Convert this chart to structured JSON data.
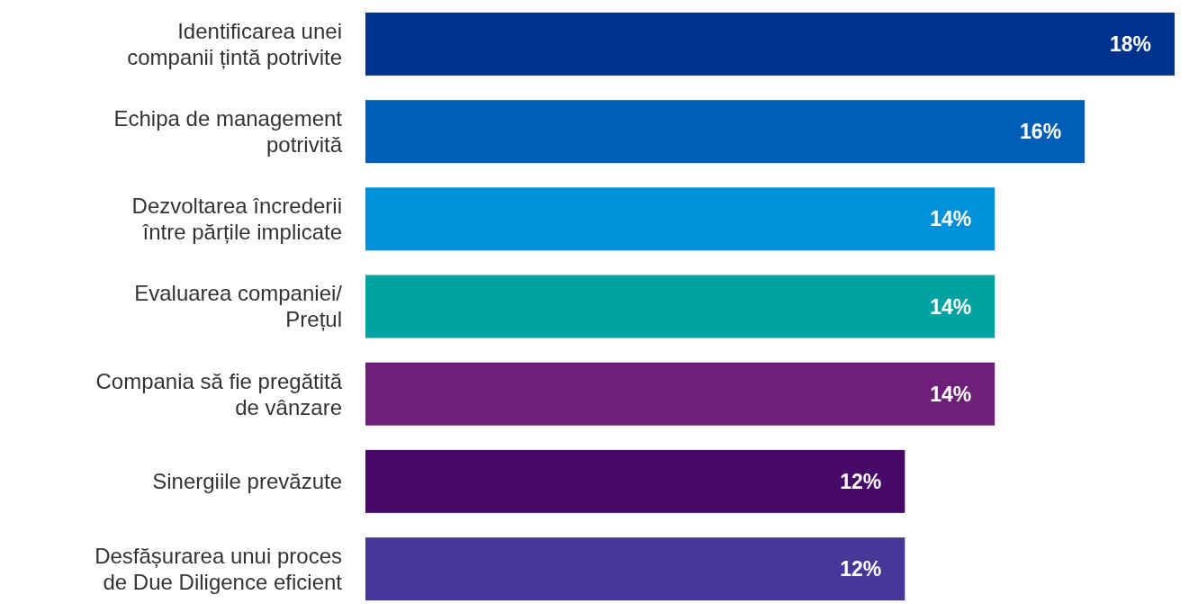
{
  "chart_data": {
    "type": "bar",
    "orientation": "horizontal",
    "categories": [
      "Identificarea unei\ncompanii țintă potrivite",
      "Echipa de management\npotrivită",
      "Dezvoltarea încrederii\nîntre părțile implicate",
      "Evaluarea companiei/\nPrețul",
      "Compania să fie pregătită\nde vânzare",
      "Sinergiile prevăzute",
      "Desfășurarea unui proces\nde Due Diligence eficient"
    ],
    "values": [
      18,
      16,
      14,
      14,
      14,
      12,
      12
    ],
    "colors": [
      "#00338d",
      "#005eb8",
      "#0091da",
      "#00a3a1",
      "#6d2077",
      "#470a68",
      "#483698"
    ],
    "value_labels": [
      "18%",
      "16%",
      "14%",
      "14%",
      "14%",
      "12%",
      "12%"
    ]
  }
}
